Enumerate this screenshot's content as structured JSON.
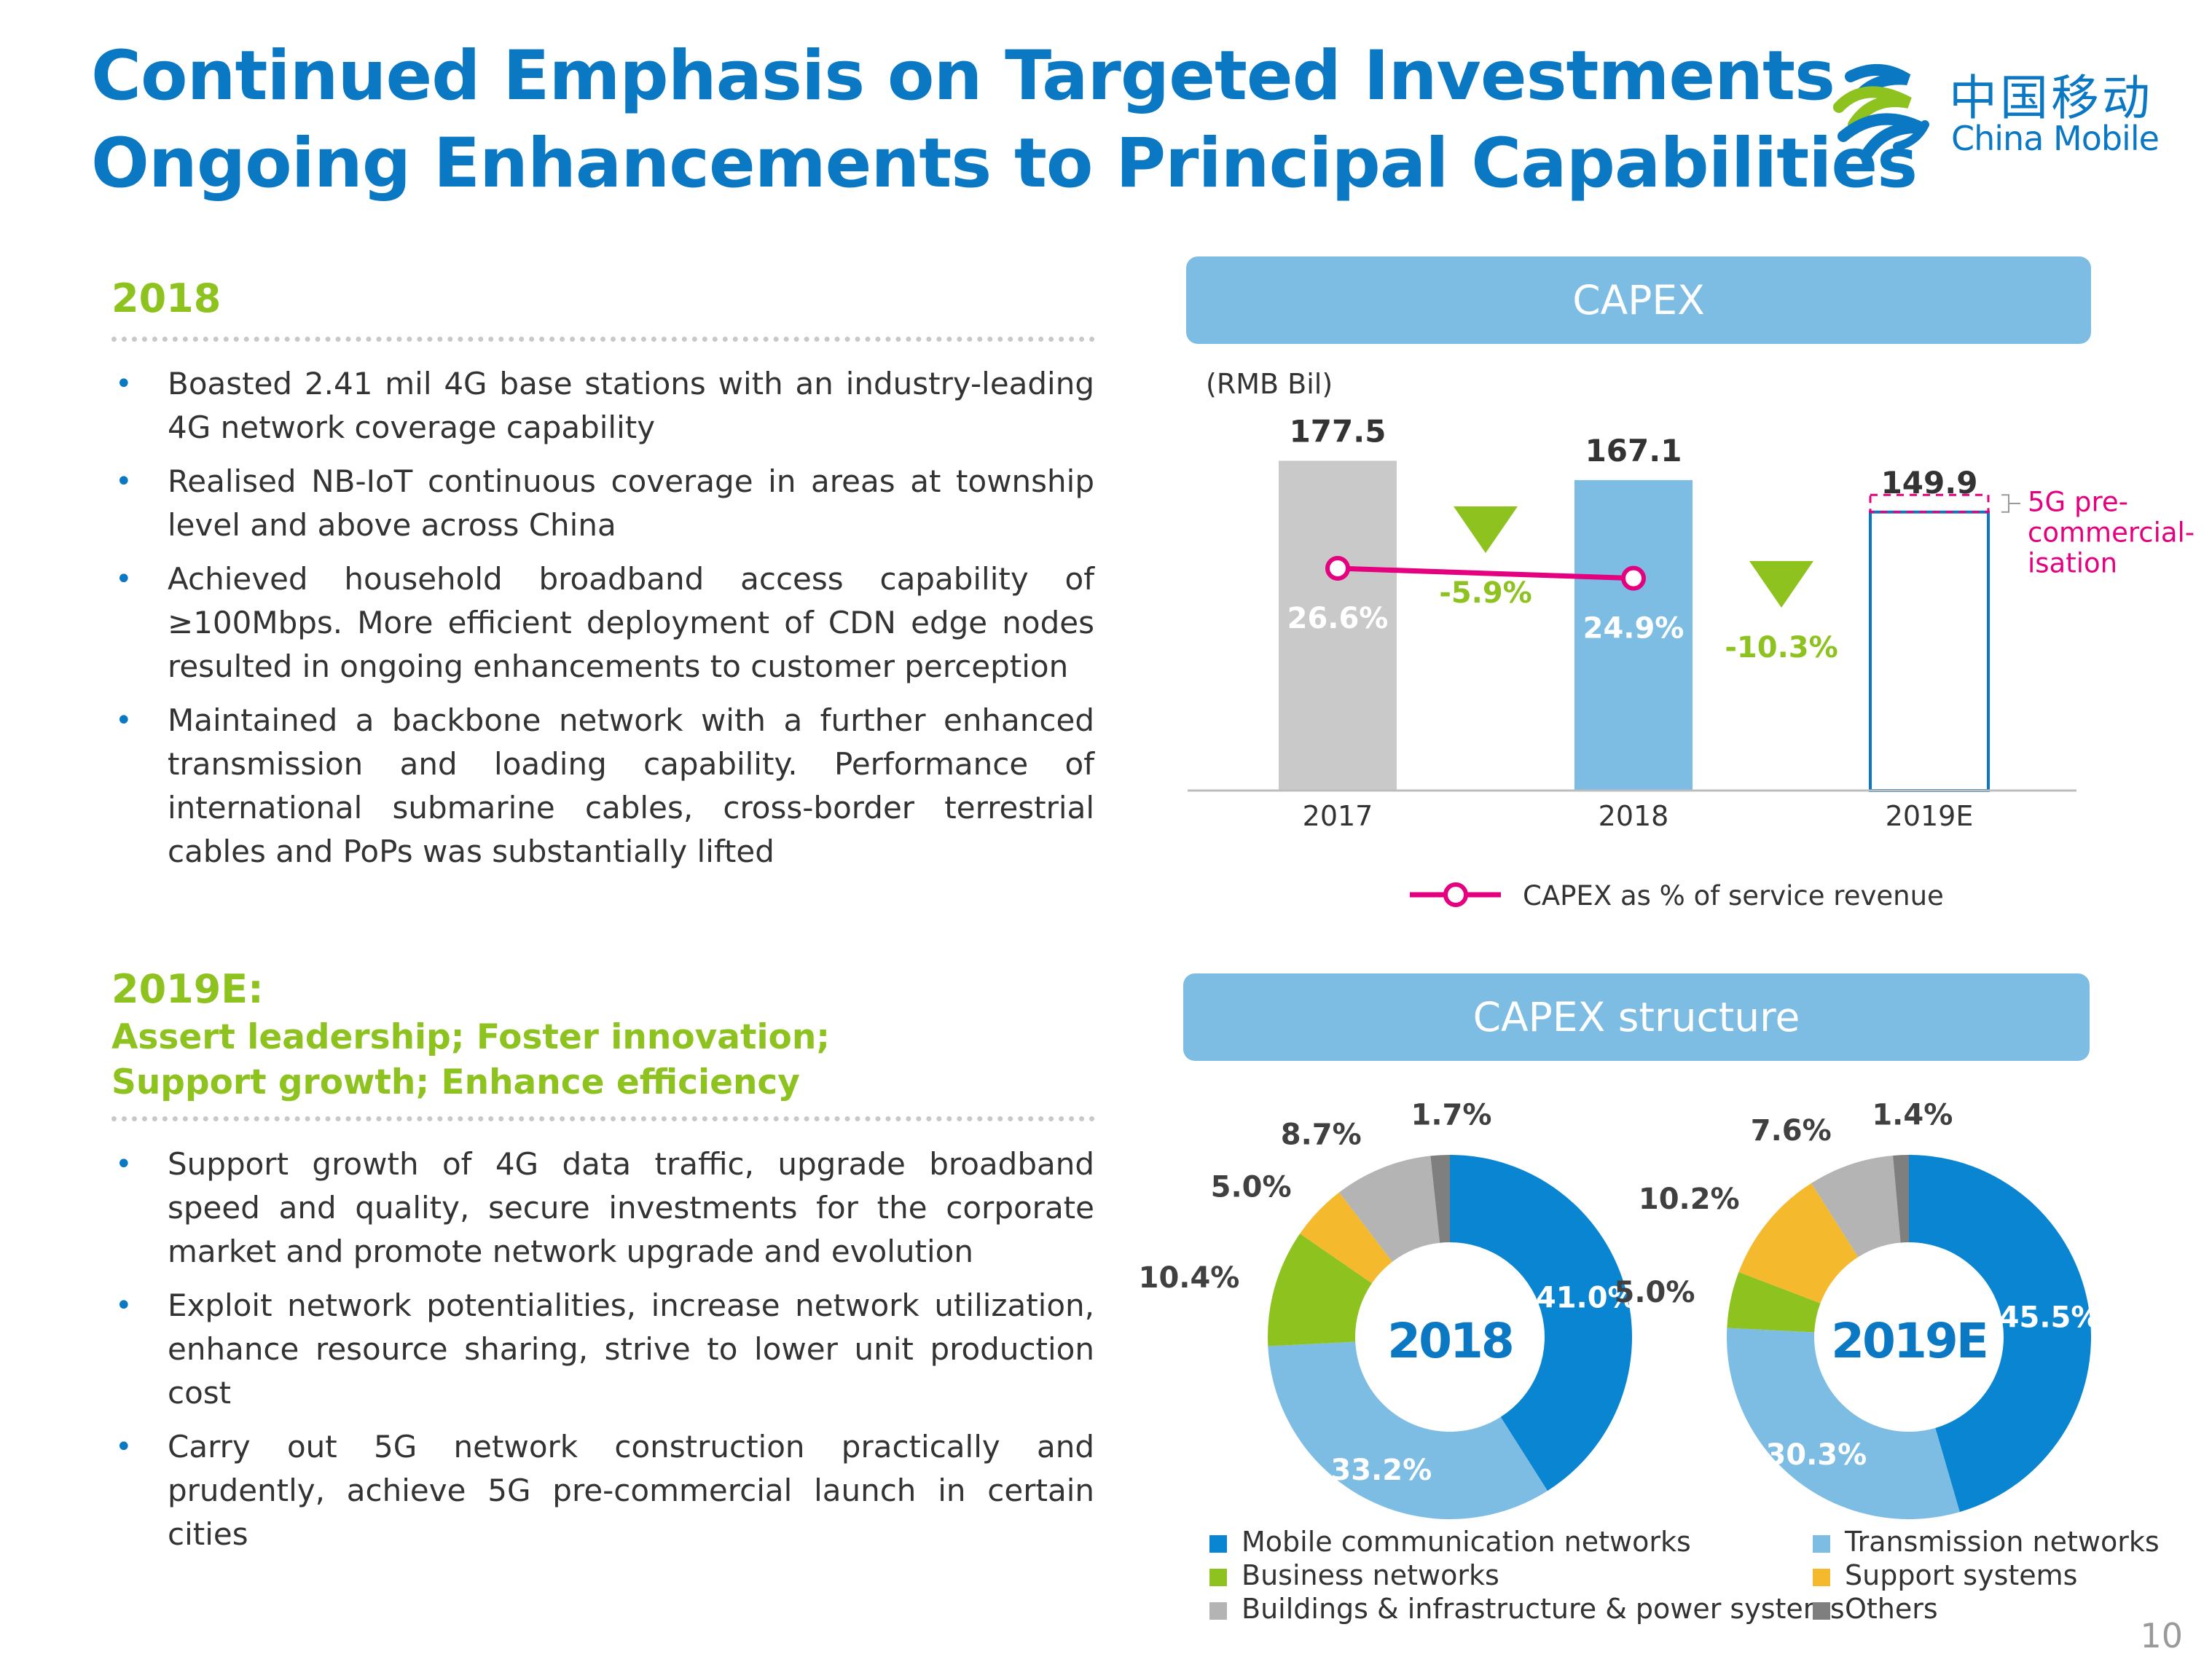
{
  "title": {
    "line1": "Continued Emphasis on Targeted Investments",
    "line2": "Ongoing Enhancements to Principal Capabilities"
  },
  "logo": {
    "name_cn": "中国移动",
    "name_en": "China Mobile",
    "icon": "china-mobile-logo-icon"
  },
  "section_2018": {
    "heading": "2018",
    "bullets": [
      "Boasted 2.41 mil 4G base stations with an industry-leading 4G network coverage capability",
      "Realised NB-IoT continuous coverage in areas at township level and above across China",
      "Achieved household broadband access capability of ≥100Mbps. More efficient deployment of CDN edge nodes resulted in ongoing enhancements to customer perception",
      "Maintained a backbone network with a further enhanced transmission and loading capability. Performance of international submarine cables, cross-border terrestrial cables and PoPs was substantially lifted"
    ]
  },
  "section_2019": {
    "heading": "2019E:",
    "sub1": "Assert leadership;  Foster innovation;",
    "sub2": "Support growth; Enhance efficiency",
    "bullets": [
      "Support growth of 4G data traffic, upgrade broadband speed and quality, secure investments for the corporate market and promote network upgrade and evolution",
      "Exploit network potentialities, increase network utilization, enhance resource sharing, strive to lower unit production cost",
      "Carry out 5G network construction practically and prudently, achieve 5G pre-commercial launch in certain cities"
    ]
  },
  "bullet_glyph": "•",
  "page_number": "10",
  "colors": {
    "title_blue": "#0a78c3",
    "green": "#8dc21f",
    "magenta": "#e4007f",
    "banner": "#7dbde4",
    "bar_grey": "#c9c9c9",
    "bar_blue": "#7dbde4",
    "bar_outline": "#0a78c3"
  },
  "chart_data": [
    {
      "type": "bar",
      "title": "CAPEX",
      "unit_label": "(RMB Bil)",
      "categories": [
        "2017",
        "2018",
        "2019E"
      ],
      "values": [
        177.5,
        167.1,
        149.9
      ],
      "value_labels": [
        "177.5",
        "167.1",
        "149.9"
      ],
      "bar_styles": [
        "solid-grey",
        "solid-blue",
        "outline-blue"
      ],
      "changes": [
        {
          "between": [
            "2017",
            "2018"
          ],
          "label": "-5.9%",
          "direction": "down"
        },
        {
          "between": [
            "2018",
            "2019E"
          ],
          "label": "-10.3%",
          "direction": "down"
        }
      ],
      "annotation": {
        "category": "2019E",
        "label_lines": [
          "5G pre-",
          "commercial-",
          "isation"
        ],
        "top_of_dashed_box": 159.1
      },
      "line_series": {
        "name": "CAPEX as % of service revenue",
        "categories": [
          "2017",
          "2018"
        ],
        "values": [
          26.6,
          24.9
        ],
        "labels": [
          "26.6%",
          "24.9%"
        ]
      },
      "legend_position": "bottom"
    },
    {
      "type": "pie",
      "title": "CAPEX structure",
      "variant": "donut",
      "categories": [
        "Mobile communication networks",
        "Transmission networks",
        "Business networks",
        "Support systems",
        "Buildings & infrastructure & power systems",
        "Others"
      ],
      "category_colors": [
        "#0a85d1",
        "#7dbde4",
        "#8dc21f",
        "#f5b92e",
        "#b4b4b4",
        "#7f7f7f"
      ],
      "series": [
        {
          "name": "2018",
          "values": [
            41.0,
            33.2,
            10.4,
            5.0,
            8.7,
            1.7
          ],
          "labels": [
            "41.0%",
            "33.2%",
            "10.4%",
            "5.0%",
            "8.7%",
            "1.7%"
          ]
        },
        {
          "name": "2019E",
          "values": [
            45.5,
            30.3,
            5.0,
            10.2,
            7.6,
            1.4
          ],
          "labels": [
            "45.5%",
            "30.3%",
            "5.0%",
            "10.2%",
            "7.6%",
            "1.4%"
          ]
        }
      ],
      "legend_position": "bottom"
    }
  ]
}
